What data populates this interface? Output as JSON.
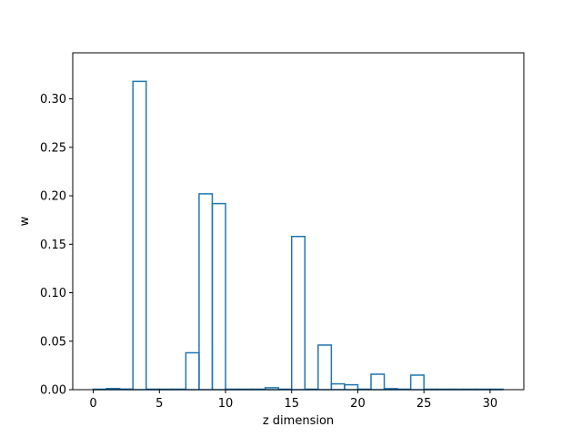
{
  "chart_data": {
    "type": "bar",
    "subtype": "step-histogram",
    "title": "",
    "xlabel": "z dimension",
    "ylabel": "w",
    "x_ticks": [
      "0",
      "5",
      "10",
      "15",
      "20",
      "25",
      "30"
    ],
    "y_ticks": [
      "0.00",
      "0.05",
      "0.10",
      "0.15",
      "0.20",
      "0.25",
      "0.30"
    ],
    "xlim": [
      -1.55,
      32.55
    ],
    "ylim": [
      0,
      0.3475
    ],
    "bin_width": 1,
    "bin_starts": [
      0,
      1,
      2,
      3,
      4,
      5,
      6,
      7,
      8,
      9,
      10,
      11,
      12,
      13,
      14,
      15,
      16,
      17,
      18,
      19,
      20,
      21,
      22,
      23,
      24,
      25,
      26,
      27,
      28,
      29,
      30
    ],
    "values": [
      0.0005,
      0.0012,
      0.0006,
      0.318,
      0.0005,
      0.0005,
      0.0005,
      0.038,
      0.202,
      0.192,
      0.0005,
      0.0005,
      0.0005,
      0.002,
      0.0005,
      0.158,
      0.0005,
      0.046,
      0.006,
      0.005,
      0.0005,
      0.016,
      0.001,
      0.0005,
      0.015,
      0.0005,
      0.0005,
      0.0005,
      0.0005,
      0.0005,
      0.0005
    ],
    "grid": false,
    "legend": "none",
    "line_color": "#1f77b4"
  }
}
